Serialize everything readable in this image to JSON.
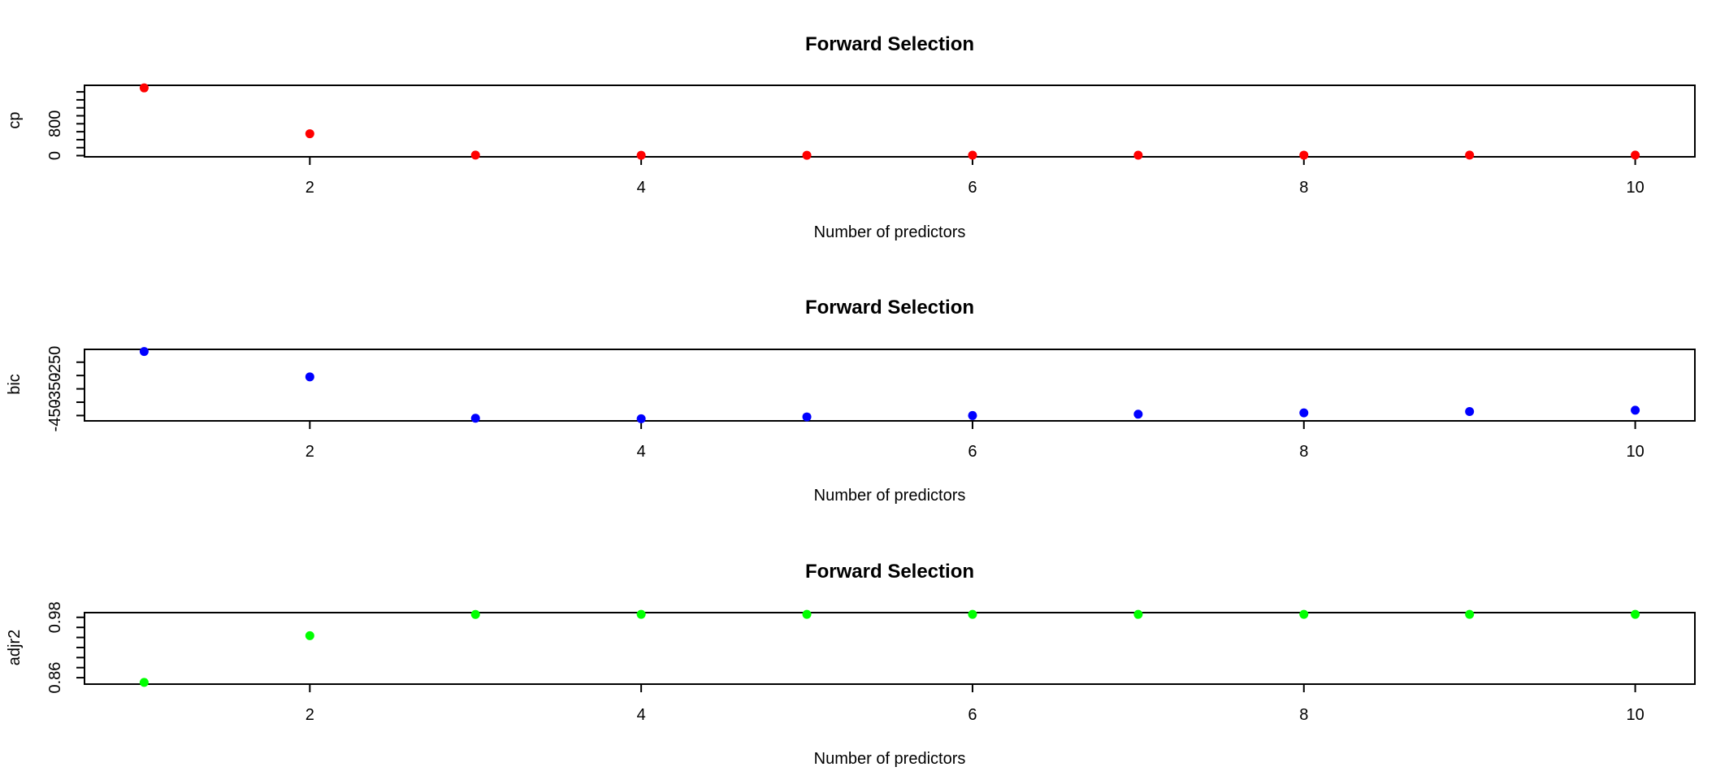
{
  "chart_data": [
    {
      "type": "scatter",
      "title": "Forward Selection",
      "xlabel": "Number of predictors",
      "ylabel": "cp",
      "x": [
        1,
        2,
        3,
        4,
        5,
        6,
        7,
        8,
        9,
        10
      ],
      "y": [
        1700,
        550,
        14,
        8,
        9,
        10,
        11,
        12,
        13,
        14
      ],
      "xlim": [
        0.64,
        10.36
      ],
      "ylim": [
        -30,
        1765
      ],
      "xticks": [
        2,
        4,
        6,
        8,
        10
      ],
      "yticks": [
        0,
        200,
        400,
        600,
        800,
        1000,
        1200,
        1400,
        1600
      ],
      "ytick_labels": [
        {
          "value": 0,
          "label": "0"
        },
        {
          "value": 800,
          "label": "800"
        }
      ],
      "color": "#ff0000",
      "grid": false
    },
    {
      "type": "scatter",
      "title": "Forward Selection",
      "xlabel": "Number of predictors",
      "ylabel": "bic",
      "x": [
        1,
        2,
        3,
        4,
        5,
        6,
        7,
        8,
        9,
        10
      ],
      "y": [
        -210,
        -305,
        -460,
        -462,
        -455,
        -450,
        -445,
        -440,
        -435,
        -430
      ],
      "xlim": [
        0.64,
        10.36
      ],
      "ylim": [
        -470,
        -202
      ],
      "xticks": [
        2,
        4,
        6,
        8,
        10
      ],
      "yticks": [
        -450,
        -400,
        -350,
        -300,
        -250
      ],
      "ytick_labels": [
        {
          "value": -450,
          "label": "-450"
        },
        {
          "value": -350,
          "label": "-350"
        },
        {
          "value": -250,
          "label": "-250"
        }
      ],
      "color": "#0000ff",
      "grid": false
    },
    {
      "type": "scatter",
      "title": "Forward Selection",
      "xlabel": "Number of predictors",
      "ylabel": "adjr2",
      "x": [
        1,
        2,
        3,
        4,
        5,
        6,
        7,
        8,
        9,
        10
      ],
      "y": [
        0.8507,
        0.9435,
        0.9857,
        0.9859,
        0.9859,
        0.9859,
        0.9859,
        0.9859,
        0.9859,
        0.9859
      ],
      "xlim": [
        0.64,
        10.36
      ],
      "ylim": [
        0.8472,
        0.9894
      ],
      "xticks": [
        2,
        4,
        6,
        8,
        10
      ],
      "yticks": [
        0.86,
        0.88,
        0.9,
        0.92,
        0.94,
        0.96,
        0.98
      ],
      "ytick_labels": [
        {
          "value": 0.86,
          "label": "0.86"
        },
        {
          "value": 0.98,
          "label": "0.98"
        }
      ],
      "color": "#00ff00",
      "grid": false
    }
  ]
}
